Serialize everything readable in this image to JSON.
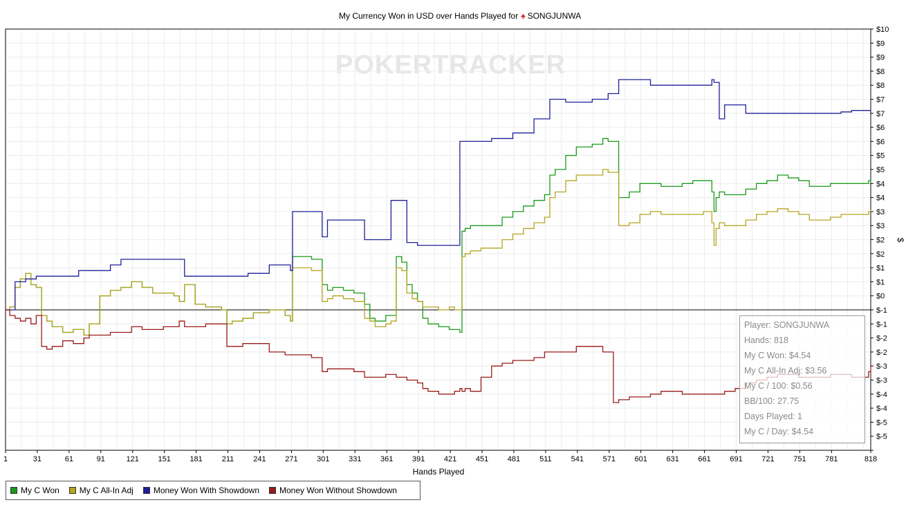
{
  "title": "My Currency Won in USD over Hands Played for",
  "player_name": "SONGJUNWA",
  "watermark": "POKERTRACKER",
  "chart_data": {
    "type": "line",
    "title": "My Currency Won in USD over Hands Played for SONGJUNWA",
    "xlabel": "Hands Played",
    "ylabel": "$",
    "xlim": [
      1,
      818
    ],
    "ylim": [
      -5,
      10
    ],
    "x_ticks": [
      1,
      31,
      61,
      91,
      121,
      151,
      181,
      211,
      241,
      271,
      301,
      331,
      361,
      391,
      421,
      451,
      481,
      511,
      541,
      571,
      601,
      631,
      661,
      691,
      721,
      751,
      781,
      818
    ],
    "y_tick_labels": [
      "$-5",
      "$-5",
      "$-4",
      "$-4",
      "$-3",
      "$-3",
      "$-2",
      "$-2",
      "$-1",
      "$-1",
      "$0",
      "$1",
      "$1",
      "$2",
      "$2",
      "$3",
      "$3",
      "$4",
      "$4",
      "$5",
      "$5",
      "$6",
      "$6",
      "$7",
      "$7",
      "$8",
      "$8",
      "$9",
      "$9",
      "$10"
    ],
    "grid": true,
    "legend_position": "bottom-left",
    "series": [
      {
        "name": "My C Won",
        "color": "#1a9a1a",
        "x": [
          1,
          5,
          10,
          15,
          20,
          25,
          30,
          35,
          40,
          45,
          55,
          65,
          75,
          80,
          90,
          100,
          110,
          120,
          130,
          140,
          150,
          160,
          165,
          170,
          180,
          190,
          205,
          210,
          215,
          225,
          235,
          250,
          265,
          270,
          272,
          275,
          290,
          300,
          305,
          310,
          320,
          330,
          340,
          345,
          350,
          360,
          365,
          370,
          375,
          380,
          385,
          390,
          395,
          400,
          410,
          420,
          425,
          430,
          432,
          435,
          440,
          450,
          460,
          470,
          480,
          490,
          500,
          510,
          515,
          520,
          530,
          540,
          555,
          565,
          570,
          575,
          580,
          590,
          600,
          610,
          620,
          630,
          640,
          650,
          660,
          668,
          670,
          672,
          675,
          680,
          690,
          700,
          710,
          720,
          730,
          740,
          750,
          760,
          770,
          780,
          790,
          800,
          810,
          816,
          818
        ],
        "y": [
          0,
          0.1,
          0.8,
          1.1,
          1.3,
          0.9,
          0.8,
          -0.2,
          -0.4,
          -0.6,
          -0.8,
          -0.7,
          -0.9,
          -0.5,
          0.5,
          0.7,
          0.8,
          1.0,
          0.8,
          0.6,
          0.6,
          0.5,
          0.3,
          0.9,
          0.2,
          0.1,
          0.0,
          -0.5,
          -0.4,
          -0.3,
          -0.1,
          0.0,
          -0.2,
          -0.4,
          1.9,
          1.9,
          1.8,
          0.9,
          0.7,
          0.8,
          0.7,
          0.6,
          0.2,
          -0.3,
          -0.4,
          -0.2,
          -0.2,
          1.9,
          1.7,
          0.9,
          0.6,
          0.3,
          -0.3,
          -0.5,
          -0.6,
          -0.7,
          -0.7,
          -0.8,
          2.8,
          2.9,
          3.0,
          3.0,
          3.0,
          3.3,
          3.5,
          3.7,
          3.9,
          4.1,
          4.8,
          5.0,
          5.5,
          5.8,
          5.9,
          6.1,
          6.0,
          6.0,
          4.0,
          4.2,
          4.5,
          4.5,
          4.4,
          4.4,
          4.5,
          4.6,
          4.6,
          4.2,
          3.5,
          4.0,
          4.2,
          4.1,
          4.1,
          4.3,
          4.5,
          4.6,
          4.8,
          4.7,
          4.6,
          4.4,
          4.4,
          4.5,
          4.5,
          4.5,
          4.5,
          4.6,
          4.54
        ]
      },
      {
        "name": "My C All-In Adj",
        "color": "#b5a521",
        "x": [
          1,
          5,
          10,
          15,
          20,
          25,
          30,
          35,
          40,
          45,
          55,
          65,
          75,
          80,
          90,
          100,
          110,
          120,
          130,
          140,
          150,
          160,
          165,
          170,
          180,
          190,
          205,
          210,
          215,
          225,
          235,
          250,
          265,
          270,
          272,
          275,
          290,
          300,
          305,
          310,
          320,
          330,
          340,
          345,
          350,
          360,
          365,
          370,
          375,
          380,
          385,
          390,
          395,
          400,
          410,
          420,
          425,
          430,
          432,
          435,
          440,
          450,
          460,
          470,
          480,
          490,
          500,
          510,
          515,
          520,
          530,
          540,
          555,
          565,
          570,
          575,
          580,
          590,
          600,
          610,
          620,
          630,
          640,
          650,
          660,
          668,
          670,
          672,
          675,
          680,
          690,
          700,
          710,
          720,
          730,
          740,
          750,
          760,
          770,
          780,
          790,
          800,
          810,
          816,
          818
        ],
        "y": [
          0,
          0.1,
          0.8,
          1.1,
          1.3,
          0.9,
          0.8,
          -0.2,
          -0.4,
          -0.6,
          -0.8,
          -0.7,
          -0.9,
          -0.5,
          0.5,
          0.7,
          0.8,
          1.0,
          0.8,
          0.6,
          0.6,
          0.5,
          0.3,
          0.9,
          0.2,
          0.1,
          0.0,
          -0.5,
          -0.4,
          -0.3,
          -0.1,
          0.0,
          -0.2,
          -0.4,
          1.5,
          1.5,
          1.4,
          0.3,
          0.4,
          0.5,
          0.4,
          0.3,
          -0.3,
          -0.4,
          -0.6,
          -0.5,
          -0.4,
          1.5,
          1.4,
          0.6,
          0.4,
          0.3,
          0.1,
          0.1,
          0.0,
          0.1,
          0.0,
          0.0,
          1.9,
          2.0,
          2.1,
          2.2,
          2.2,
          2.5,
          2.7,
          2.9,
          3.1,
          3.3,
          4.0,
          4.2,
          4.6,
          4.8,
          4.8,
          5.0,
          4.9,
          4.9,
          3.0,
          3.1,
          3.4,
          3.5,
          3.4,
          3.4,
          3.4,
          3.4,
          3.5,
          3.1,
          2.3,
          2.9,
          3.1,
          3.0,
          3.0,
          3.2,
          3.4,
          3.5,
          3.6,
          3.5,
          3.4,
          3.2,
          3.2,
          3.3,
          3.4,
          3.4,
          3.4,
          3.5,
          3.56
        ]
      },
      {
        "name": "Money Won With Showdown",
        "color": "#1f1f9a",
        "x": [
          1,
          5,
          7,
          10,
          20,
          30,
          40,
          50,
          60,
          70,
          80,
          90,
          100,
          110,
          120,
          130,
          140,
          150,
          160,
          170,
          180,
          190,
          200,
          210,
          220,
          230,
          240,
          250,
          260,
          270,
          272,
          275,
          290,
          300,
          305,
          310,
          320,
          330,
          340,
          345,
          350,
          360,
          365,
          370,
          375,
          380,
          385,
          390,
          395,
          400,
          410,
          420,
          425,
          430,
          432,
          435,
          440,
          450,
          460,
          470,
          480,
          490,
          500,
          510,
          515,
          520,
          530,
          540,
          555,
          565,
          570,
          575,
          580,
          590,
          600,
          610,
          620,
          630,
          640,
          650,
          660,
          668,
          670,
          672,
          675,
          680,
          690,
          700,
          710,
          720,
          730,
          740,
          750,
          760,
          770,
          780,
          790,
          800,
          810,
          816,
          818
        ],
        "y": [
          0,
          0,
          0,
          1.0,
          1.1,
          1.2,
          1.2,
          1.2,
          1.2,
          1.4,
          1.4,
          1.4,
          1.6,
          1.8,
          1.8,
          1.8,
          1.8,
          1.8,
          1.8,
          1.2,
          1.2,
          1.2,
          1.2,
          1.2,
          1.2,
          1.3,
          1.3,
          1.6,
          1.6,
          1.4,
          3.5,
          3.5,
          3.5,
          2.6,
          3.2,
          3.2,
          3.2,
          3.2,
          2.5,
          2.5,
          2.5,
          2.5,
          3.9,
          3.9,
          3.9,
          2.4,
          2.4,
          2.3,
          2.3,
          2.3,
          2.3,
          2.3,
          2.3,
          6.0,
          6.0,
          6.0,
          6.0,
          6.0,
          6.1,
          6.1,
          6.3,
          6.3,
          6.8,
          6.8,
          7.5,
          7.5,
          7.4,
          7.4,
          7.5,
          7.5,
          7.7,
          7.7,
          8.2,
          8.2,
          8.2,
          8.0,
          8.0,
          8.0,
          8.0,
          8.0,
          8.0,
          8.2,
          8.1,
          8.1,
          6.8,
          7.3,
          7.3,
          7.0,
          7.0,
          7.0,
          7.0,
          7.0,
          7.0,
          7.0,
          7.0,
          7.0,
          7.05,
          7.1,
          7.1,
          7.1,
          7.1
        ]
      },
      {
        "name": "Money Won Without Showdown",
        "color": "#9a1a1a",
        "x": [
          1,
          5,
          10,
          15,
          20,
          25,
          30,
          35,
          40,
          45,
          55,
          65,
          75,
          80,
          90,
          100,
          110,
          120,
          130,
          140,
          150,
          160,
          165,
          170,
          180,
          190,
          205,
          210,
          215,
          225,
          235,
          250,
          265,
          270,
          272,
          275,
          290,
          300,
          305,
          310,
          320,
          330,
          340,
          345,
          350,
          360,
          365,
          370,
          375,
          380,
          385,
          390,
          395,
          400,
          410,
          420,
          425,
          430,
          432,
          435,
          440,
          450,
          460,
          470,
          480,
          490,
          500,
          510,
          515,
          520,
          530,
          540,
          555,
          565,
          570,
          575,
          580,
          590,
          600,
          610,
          620,
          630,
          640,
          650,
          660,
          668,
          670,
          672,
          675,
          680,
          690,
          700,
          710,
          720,
          730,
          740,
          750,
          760,
          770,
          780,
          790,
          800,
          810,
          816,
          818
        ],
        "y": [
          0,
          -0.2,
          -0.3,
          -0.4,
          -0.3,
          -0.5,
          -0.2,
          -1.3,
          -1.4,
          -1.3,
          -1.1,
          -1.2,
          -1.0,
          -0.9,
          -0.9,
          -0.8,
          -0.8,
          -0.6,
          -0.7,
          -0.7,
          -0.6,
          -0.6,
          -0.4,
          -0.6,
          -0.6,
          -0.5,
          -0.5,
          -1.3,
          -1.3,
          -1.2,
          -1.2,
          -1.5,
          -1.6,
          -1.6,
          -1.6,
          -1.6,
          -1.7,
          -2.2,
          -2.1,
          -2.1,
          -2.1,
          -2.2,
          -2.4,
          -2.4,
          -2.4,
          -2.3,
          -2.3,
          -2.4,
          -2.4,
          -2.5,
          -2.5,
          -2.6,
          -2.8,
          -2.9,
          -3.0,
          -3.0,
          -2.9,
          -2.8,
          -2.9,
          -2.8,
          -2.9,
          -2.4,
          -2.0,
          -1.9,
          -1.8,
          -1.8,
          -1.7,
          -1.5,
          -1.5,
          -1.5,
          -1.5,
          -1.3,
          -1.3,
          -1.5,
          -1.5,
          -3.3,
          -3.2,
          -3.1,
          -3.1,
          -3.0,
          -2.9,
          -2.9,
          -3.0,
          -3.0,
          -3.0,
          -3.0,
          -3.0,
          -3.0,
          -3.0,
          -2.9,
          -2.8,
          -2.6,
          -2.5,
          -2.4,
          -2.3,
          -2.3,
          -2.4,
          -2.4,
          -2.4,
          -2.3,
          -2.3,
          -2.4,
          -2.4,
          -2.2,
          -1.98
        ]
      }
    ]
  },
  "legend": {
    "items": [
      {
        "label": "My C Won",
        "color": "#1a9a1a"
      },
      {
        "label": "My C All-In Adj",
        "color": "#b5a521"
      },
      {
        "label": "Money Won With Showdown",
        "color": "#1f1f9a"
      },
      {
        "label": "Money Won Without Showdown",
        "color": "#9a1a1a"
      }
    ]
  },
  "info": {
    "lines": [
      "Player: SONGJUNWA",
      "Hands: 818",
      "My C Won: $4.54",
      "My C All-In Adj: $3.56",
      "My C / 100: $0.56",
      "BB/100: 27.75",
      "Days Played: 1",
      "My C / Day: $4.54"
    ]
  }
}
